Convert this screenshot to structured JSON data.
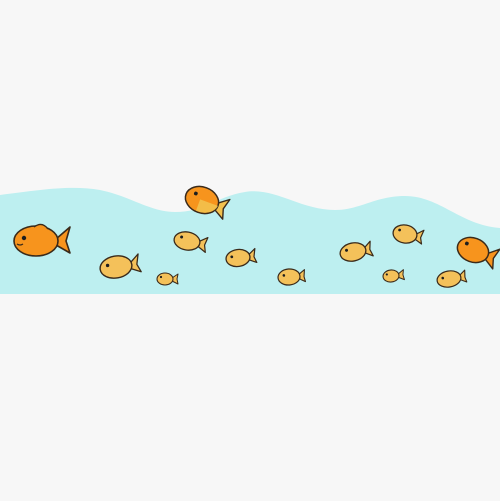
{
  "scene": {
    "subject": "goldfish-in-water-border",
    "colors": {
      "background": "#f7f7f7",
      "water": "#bdeff0",
      "outline": "#3a2a1a",
      "orange_fish": "#f7941d",
      "orange_fish_dark": "#f2661f",
      "yellow_fish": "#f2c14e",
      "yellow_fish_body": "#f4c15a",
      "eye": "#1e1e1e"
    },
    "fish": [
      {
        "id": "fish-large-left",
        "kind": "orange"
      },
      {
        "id": "fish-top-center",
        "kind": "orange-yellow"
      },
      {
        "id": "fish-right",
        "kind": "orange"
      },
      {
        "id": "fish-small-1",
        "kind": "yellow"
      },
      {
        "id": "fish-small-2",
        "kind": "yellow"
      },
      {
        "id": "fish-small-3",
        "kind": "yellow"
      },
      {
        "id": "fish-small-4",
        "kind": "yellow"
      },
      {
        "id": "fish-small-5",
        "kind": "yellow"
      },
      {
        "id": "fish-small-6",
        "kind": "yellow"
      },
      {
        "id": "fish-small-7",
        "kind": "yellow"
      },
      {
        "id": "fish-small-8",
        "kind": "yellow"
      },
      {
        "id": "fish-small-9",
        "kind": "yellow"
      },
      {
        "id": "fish-small-10",
        "kind": "yellow"
      }
    ]
  }
}
